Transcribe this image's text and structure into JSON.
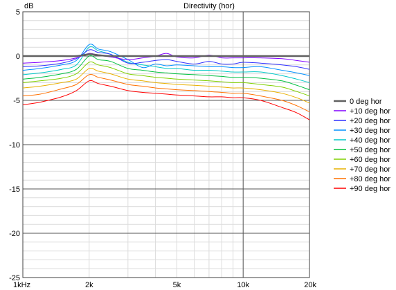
{
  "chart_data": {
    "type": "line",
    "title": "Directivity (hor)",
    "ylabel": "dB",
    "xlabel": "",
    "x_scale": "log",
    "xlim": [
      1000,
      20000
    ],
    "ylim": [
      -25,
      5
    ],
    "x_ticks": [
      {
        "value": 1000,
        "label": "1kHz"
      },
      {
        "value": 2000,
        "label": "2k"
      },
      {
        "value": 5000,
        "label": "5k"
      },
      {
        "value": 10000,
        "label": "10k"
      },
      {
        "value": 20000,
        "label": "20k"
      }
    ],
    "y_ticks": [
      {
        "value": 5,
        "label": "5"
      },
      {
        "value": 0,
        "label": "0"
      },
      {
        "value": -5,
        "label": "-5"
      },
      {
        "value": -10,
        "label": "-10"
      },
      {
        "value": -15,
        "label": "-15"
      },
      {
        "value": -20,
        "label": "-20"
      },
      {
        "value": -25,
        "label": "-25"
      }
    ],
    "grid": true,
    "legend_position": "right",
    "x": [
      1000,
      1200,
      1500,
      1750,
      2000,
      2200,
      2500,
      3000,
      3500,
      4000,
      4500,
      5000,
      6000,
      7000,
      8000,
      9000,
      10000,
      12000,
      15000,
      17500,
      20000
    ],
    "series": [
      {
        "name": "0 deg hor",
        "color": "#606060",
        "values": [
          0,
          0,
          0,
          0,
          0.2,
          0.1,
          0,
          0,
          0,
          0,
          0,
          0,
          0,
          0,
          0,
          0,
          0,
          0,
          0,
          0,
          0
        ]
      },
      {
        "name": "+10 deg hor",
        "color": "#8000ff",
        "values": [
          -0.8,
          -0.7,
          -0.5,
          -0.2,
          0.3,
          0.1,
          -0.1,
          -0.4,
          -0.2,
          0,
          0.3,
          -0.1,
          -0.2,
          0.1,
          -0.2,
          -0.2,
          -0.2,
          -0.2,
          -0.3,
          -0.5,
          -0.7
        ]
      },
      {
        "name": "+20 deg hor",
        "color": "#3030ff",
        "values": [
          -1.2,
          -1.1,
          -0.8,
          -0.3,
          0.7,
          0.4,
          0.2,
          -0.8,
          -0.7,
          -0.5,
          -0.4,
          -0.6,
          -0.9,
          -0.6,
          -0.9,
          -0.9,
          -0.7,
          -0.8,
          -1.0,
          -1.2,
          -1.5
        ]
      },
      {
        "name": "+30 deg hor",
        "color": "#0090ff",
        "values": [
          -1.6,
          -1.4,
          -1.0,
          -0.5,
          1.3,
          0.8,
          0.5,
          -0.4,
          -1.3,
          -0.9,
          -1.1,
          -1.0,
          -1.1,
          -1.2,
          -1.2,
          -1.3,
          -1.3,
          -1.2,
          -1.6,
          -1.9,
          -2.2
        ]
      },
      {
        "name": "+40 deg hor",
        "color": "#00c8c8",
        "values": [
          -2.1,
          -1.9,
          -1.5,
          -1.0,
          1.0,
          0.6,
          0.2,
          -0.7,
          -1.0,
          -1.2,
          -1.4,
          -1.4,
          -1.6,
          -1.6,
          -1.7,
          -1.8,
          -1.8,
          -1.8,
          -2.2,
          -2.6,
          -3.0
        ]
      },
      {
        "name": "+50 deg hor",
        "color": "#00c040",
        "values": [
          -2.6,
          -2.4,
          -2.0,
          -1.5,
          0.0,
          -0.4,
          -0.6,
          -1.4,
          -1.6,
          -1.8,
          -1.9,
          -2.0,
          -2.1,
          -2.2,
          -2.3,
          -2.4,
          -2.4,
          -2.5,
          -2.8,
          -3.3,
          -3.8
        ]
      },
      {
        "name": "+60 deg hor",
        "color": "#80d000",
        "values": [
          -3.0,
          -2.8,
          -2.5,
          -2.0,
          -0.7,
          -1.0,
          -1.3,
          -2.0,
          -2.2,
          -2.4,
          -2.5,
          -2.6,
          -2.7,
          -2.8,
          -2.9,
          -3.0,
          -3.0,
          -3.2,
          -3.5,
          -4.0,
          -4.5
        ]
      },
      {
        "name": "+70 deg hor",
        "color": "#e8b000",
        "values": [
          -3.6,
          -3.4,
          -3.0,
          -2.6,
          -1.4,
          -1.7,
          -2.0,
          -2.6,
          -2.8,
          -3.0,
          -3.1,
          -3.2,
          -3.3,
          -3.4,
          -3.5,
          -3.6,
          -3.6,
          -3.8,
          -4.2,
          -4.7,
          -5.3
        ]
      },
      {
        "name": "+80 deg hor",
        "color": "#ff7000",
        "values": [
          -4.5,
          -4.3,
          -3.7,
          -3.2,
          -2.1,
          -2.4,
          -2.7,
          -3.2,
          -3.4,
          -3.6,
          -3.7,
          -3.8,
          -3.9,
          -4.0,
          -4.1,
          -4.2,
          -4.2,
          -4.5,
          -5.0,
          -5.6,
          -6.3
        ]
      },
      {
        "name": "+90 deg hor",
        "color": "#ff0000",
        "values": [
          -5.5,
          -5.2,
          -4.6,
          -3.9,
          -2.8,
          -3.1,
          -3.4,
          -3.9,
          -4.1,
          -4.2,
          -4.3,
          -4.4,
          -4.5,
          -4.6,
          -4.6,
          -4.7,
          -4.7,
          -5.0,
          -5.8,
          -6.4,
          -7.2
        ]
      }
    ]
  }
}
